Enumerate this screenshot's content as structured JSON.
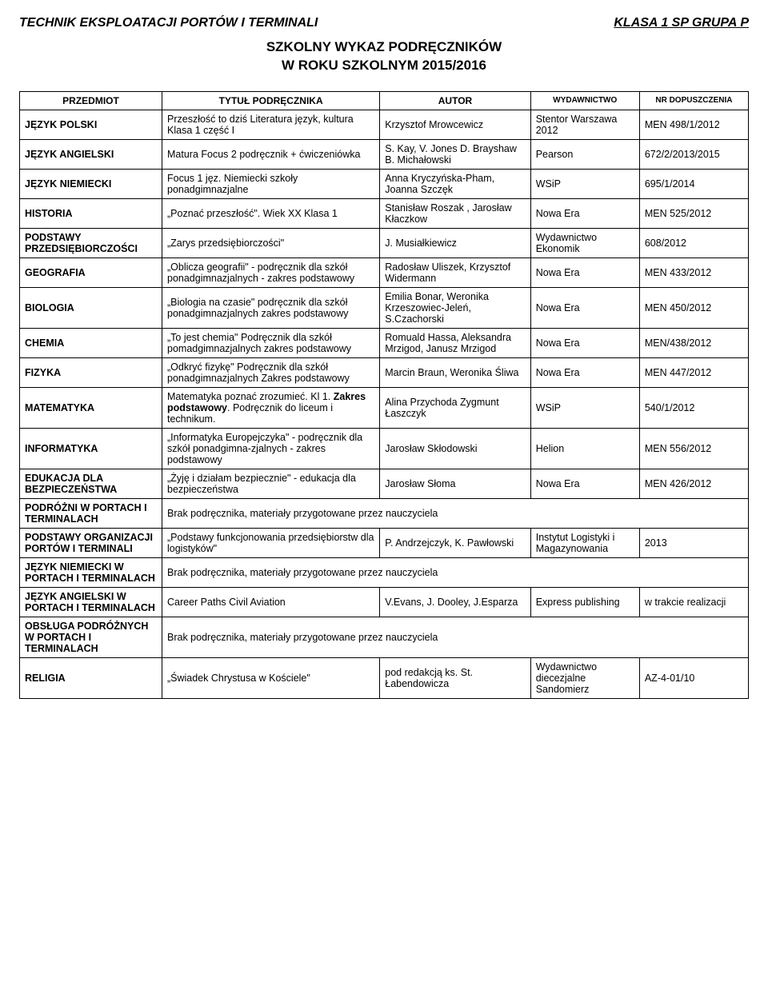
{
  "header": {
    "left": "TECHNIK EKSPLOATACJI PORTÓW I TERMINALI",
    "right": "KLASA 1 SP  GRUPA P"
  },
  "title": {
    "line1": "SZKOLNY WYKAZ PODRĘCZNIKÓW",
    "line2": "W ROKU SZKOLNYM        2015/2016"
  },
  "columns": {
    "c1": "PRZEDMIOT",
    "c2": "TYTUŁ PODRĘCZNIKA",
    "c3": "AUTOR",
    "c4": "WYDAWNICTWO",
    "c5": "NR DOPUSZCZENIA"
  },
  "rows": [
    {
      "subject": "JĘZYK POLSKI",
      "title": "Przeszłość to dziś Literatura język, kultura Klasa 1  część I",
      "author": "Krzysztof Mrowcewicz",
      "pub": "Stentor Warszawa 2012",
      "nr": "MEN 498/1/2012"
    },
    {
      "subject": "JĘZYK ANGIELSKI",
      "title": "Matura Focus 2 podręcznik + ćwiczeniówka",
      "author": "S. Kay, V. Jones D. Brayshaw B. Michałowski",
      "pub": "Pearson",
      "nr": "672/2/2013/2015"
    },
    {
      "subject": "JĘZYK NIEMIECKI",
      "title": "Focus 1 jęz. Niemiecki szkoły ponadgimnazjalne",
      "author": "Anna Kryczyńska-Pham, Joanna Szczęk",
      "pub": "WSiP",
      "nr": "695/1/2014"
    },
    {
      "subject": "HISTORIA",
      "title": "„Poznać przeszłość\". Wiek XX Klasa 1",
      "author": "Stanisław Roszak , Jarosław Kłaczkow",
      "pub": "Nowa Era",
      "nr": "MEN 525/2012"
    },
    {
      "subject": "PODSTAWY PRZEDSIĘBIORCZOŚCI",
      "title": "„Zarys przedsiębiorczości\"",
      "author": "J. Musiałkiewicz",
      "pub": "Wydawnictwo Ekonomik",
      "nr": "608/2012"
    },
    {
      "subject": "GEOGRAFIA",
      "title": "„Oblicza geografii\" - podręcznik dla szkół ponadgimnazjalnych - zakres podstawowy",
      "author": "Radosław Uliszek, Krzysztof Widermann",
      "pub": "Nowa Era",
      "nr": "MEN 433/2012"
    },
    {
      "subject": "BIOLOGIA",
      "title": "„Biologia na czasie\" podręcznik dla szkół ponadgimnazjalnych zakres podstawowy",
      "author": "Emilia Bonar, Weronika Krzeszowiec-Jeleń, S.Czachorski",
      "pub": "Nowa Era",
      "nr": "MEN 450/2012"
    },
    {
      "subject": "CHEMIA",
      "title": "„To jest chemia\" Podręcznik dla szkół pomadgimnazjalnych zakres podstawowy",
      "author": "Romuald Hassa, Aleksandra Mrzigod, Janusz Mrzigod",
      "pub": "Nowa Era",
      "nr": "MEN/438/2012"
    },
    {
      "subject": "FIZYKA",
      "title": "„Odkryć fizykę\" Podręcznik dla szkół ponadgimnazjalnych Zakres podstawowy",
      "author": "Marcin Braun, Weronika Śliwa",
      "pub": "Nowa Era",
      "nr": "MEN 447/2012"
    },
    {
      "subject": "MATEMATYKA",
      "title_html": "Matematyka poznać zrozumieć. Kl 1. <span class=\"bold-inline\">Zakres podstawowy</span>. Podręcznik do liceum i technikum.",
      "author": "Alina Przychoda Zygmunt Łaszczyk",
      "pub": "WSiP",
      "nr": "540/1/2012"
    },
    {
      "subject": "INFORMATYKA",
      "title": "„Informatyka  Europejczyka\" - podręcznik dla szkół ponadgimna-zjalnych - zakres podstawowy",
      "author": "Jarosław Skłodowski",
      "pub": "Helion",
      "nr": "MEN 556/2012"
    },
    {
      "subject": "EDUKACJA DLA BEZPIECZEŃSTWA",
      "title": "„Żyję i działam bezpiecznie\" - edukacja dla bezpieczeństwa",
      "author": "Jarosław Słoma",
      "pub": "Nowa Era",
      "nr": "MEN 426/2012"
    },
    {
      "subject": "PODRÓŻNI W PORTACH I TERMINALACH",
      "full": "Brak podręcznika, materiały przygotowane przez nauczyciela"
    },
    {
      "subject": "PODSTAWY ORGANIZACJI PORTÓW I TERMINALI",
      "title": "„Podstawy funkcjonowania przedsiębiorstw dla logistyków\"",
      "author": "P. Andrzejczyk, K. Pawłowski",
      "pub": "Instytut Logistyki i Magazynowania",
      "nr": "2013"
    },
    {
      "subject": "JĘZYK NIEMIECKI W PORTACH I TERMINALACH",
      "full": "Brak podręcznika, materiały przygotowane przez nauczyciela"
    },
    {
      "subject": "JĘZYK ANGIELSKI W PORTACH I TERMINALACH",
      "title": "Career Paths Civil Aviation",
      "author": "V.Evans, J. Dooley, J.Esparza",
      "pub": "Express publishing",
      "nr": "w trakcie realizacji"
    },
    {
      "subject": "OBSŁUGA PODRÓŻNYCH W PORTACH I TERMINALACH",
      "full": "Brak podręcznika, materiały przygotowane przez nauczyciela"
    },
    {
      "subject": "RELIGIA",
      "title": "„Świadek Chrystusa w Kościele\"",
      "author": "pod redakcją ks. St. Łabendowicza",
      "pub": "Wydawnictwo diecezjalne Sandomierz",
      "nr": "AZ-4-01/10"
    }
  ]
}
